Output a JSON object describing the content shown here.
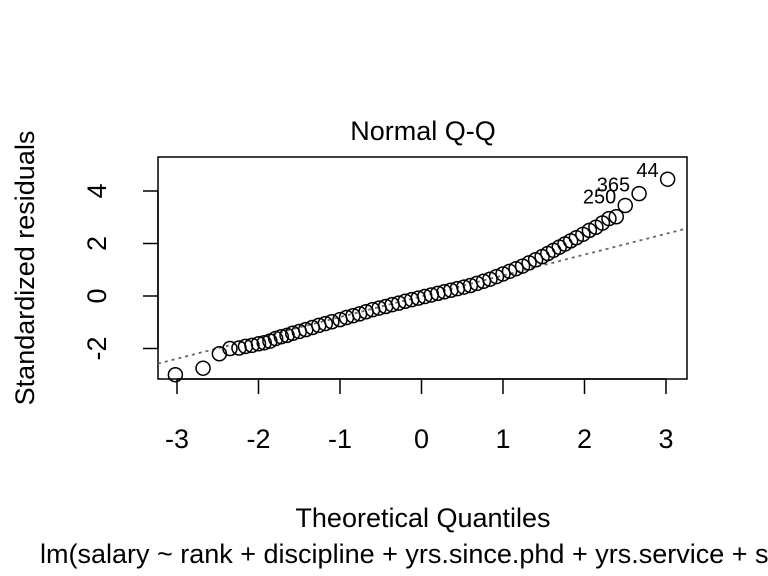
{
  "chart_data": {
    "type": "scatter",
    "title": "Normal Q-Q",
    "xlabel": "Theoretical Quantiles",
    "ylabel": "Standardized residuals",
    "subtitle": "lm(salary ~ rank + discipline + yrs.since.phd + yrs.service + sex)",
    "xlim": [
      -3.3,
      3.3
    ],
    "ylim": [
      -3.3,
      5.4
    ],
    "x_ticks": [
      -3,
      -2,
      -1,
      0,
      1,
      2,
      3
    ],
    "y_ticks": [
      -2,
      0,
      2,
      4
    ],
    "x_tick_labels": [
      "-3",
      "-2",
      "-1",
      "0",
      "1",
      "2",
      "3"
    ],
    "y_tick_labels": [
      "-2",
      "0",
      "2",
      "4"
    ],
    "grid": false,
    "reference_line": {
      "slope": 0.78,
      "intercept": 0.0,
      "style": "dotted",
      "color": "#666666"
    },
    "points": [
      {
        "x": -3.02,
        "y": -3.0
      },
      {
        "x": -2.68,
        "y": -2.75
      },
      {
        "x": -2.48,
        "y": -2.2
      },
      {
        "x": -2.35,
        "y": -2.0
      },
      {
        "x": -2.24,
        "y": -1.98
      },
      {
        "x": -2.16,
        "y": -1.92
      },
      {
        "x": -2.08,
        "y": -1.88
      },
      {
        "x": -2.0,
        "y": -1.82
      },
      {
        "x": -1.93,
        "y": -1.78
      },
      {
        "x": -1.86,
        "y": -1.72
      },
      {
        "x": -1.79,
        "y": -1.62
      },
      {
        "x": -1.72,
        "y": -1.55
      },
      {
        "x": -1.65,
        "y": -1.5
      },
      {
        "x": -1.58,
        "y": -1.42
      },
      {
        "x": -1.5,
        "y": -1.35
      },
      {
        "x": -1.42,
        "y": -1.28
      },
      {
        "x": -1.34,
        "y": -1.2
      },
      {
        "x": -1.26,
        "y": -1.12
      },
      {
        "x": -1.18,
        "y": -1.05
      },
      {
        "x": -1.1,
        "y": -0.98
      },
      {
        "x": -1.0,
        "y": -0.9
      },
      {
        "x": -0.92,
        "y": -0.82
      },
      {
        "x": -0.84,
        "y": -0.75
      },
      {
        "x": -0.76,
        "y": -0.68
      },
      {
        "x": -0.68,
        "y": -0.6
      },
      {
        "x": -0.6,
        "y": -0.52
      },
      {
        "x": -0.52,
        "y": -0.46
      },
      {
        "x": -0.44,
        "y": -0.4
      },
      {
        "x": -0.36,
        "y": -0.33
      },
      {
        "x": -0.28,
        "y": -0.27
      },
      {
        "x": -0.2,
        "y": -0.2
      },
      {
        "x": -0.12,
        "y": -0.14
      },
      {
        "x": -0.04,
        "y": -0.08
      },
      {
        "x": 0.04,
        "y": -0.02
      },
      {
        "x": 0.12,
        "y": 0.04
      },
      {
        "x": 0.2,
        "y": 0.1
      },
      {
        "x": 0.28,
        "y": 0.16
      },
      {
        "x": 0.36,
        "y": 0.22
      },
      {
        "x": 0.44,
        "y": 0.28
      },
      {
        "x": 0.52,
        "y": 0.34
      },
      {
        "x": 0.6,
        "y": 0.4
      },
      {
        "x": 0.68,
        "y": 0.48
      },
      {
        "x": 0.76,
        "y": 0.56
      },
      {
        "x": 0.84,
        "y": 0.64
      },
      {
        "x": 0.92,
        "y": 0.74
      },
      {
        "x": 1.0,
        "y": 0.84
      },
      {
        "x": 1.08,
        "y": 0.94
      },
      {
        "x": 1.16,
        "y": 1.04
      },
      {
        "x": 1.24,
        "y": 1.14
      },
      {
        "x": 1.32,
        "y": 1.26
      },
      {
        "x": 1.4,
        "y": 1.38
      },
      {
        "x": 1.48,
        "y": 1.5
      },
      {
        "x": 1.55,
        "y": 1.62
      },
      {
        "x": 1.62,
        "y": 1.74
      },
      {
        "x": 1.69,
        "y": 1.86
      },
      {
        "x": 1.76,
        "y": 1.98
      },
      {
        "x": 1.83,
        "y": 2.1
      },
      {
        "x": 1.9,
        "y": 2.22
      },
      {
        "x": 1.98,
        "y": 2.35
      },
      {
        "x": 2.06,
        "y": 2.5
      },
      {
        "x": 2.14,
        "y": 2.62
      },
      {
        "x": 2.22,
        "y": 2.78
      },
      {
        "x": 2.3,
        "y": 2.95
      },
      {
        "x": 2.39,
        "y": 3.02
      },
      {
        "x": 2.5,
        "y": 3.45,
        "label": "250"
      },
      {
        "x": 2.67,
        "y": 3.9,
        "label": "365"
      },
      {
        "x": 3.02,
        "y": 4.45,
        "label": "44"
      }
    ]
  }
}
